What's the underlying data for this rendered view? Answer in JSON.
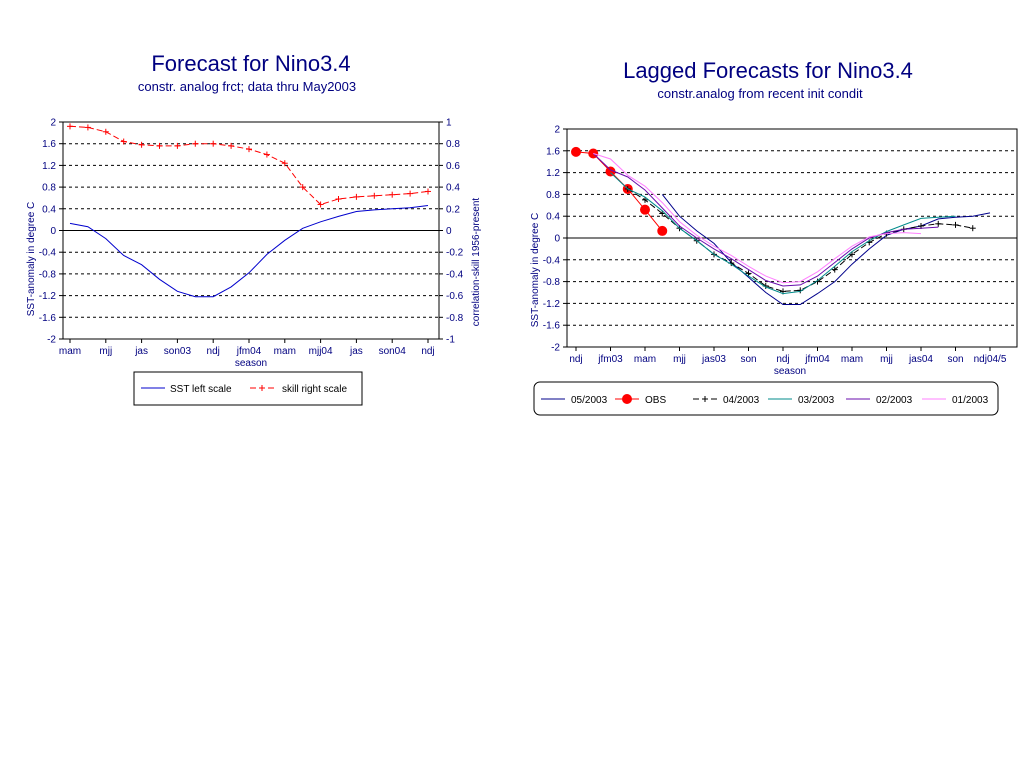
{
  "chart_data": [
    {
      "type": "line",
      "title": "Forecast for Nino3.4",
      "subtitle": "constr. analog frct; data thru May2003",
      "xlabel": "season",
      "ylabel": "SST-anomaly in degree C",
      "ylabel_right": "correlation-skill 1956-present",
      "ylim": [
        -2,
        2
      ],
      "ylim_right": [
        -1,
        1
      ],
      "yticks": [
        "2",
        "1.6",
        "1.2",
        "0.8",
        "0.4",
        "0",
        "-0.4",
        "-0.8",
        "-1.2",
        "-1.6",
        "-2"
      ],
      "yticks_right": [
        "1",
        "0.8",
        "0.6",
        "0.4",
        "0.2",
        "0",
        "-0.2",
        "-0.4",
        "-0.6",
        "-0.8",
        "-1"
      ],
      "categories": [
        "mam",
        "mjj",
        "jas",
        "son03",
        "ndj",
        "jfm04",
        "mam",
        "mjj04",
        "jas",
        "son04",
        "ndj"
      ],
      "grid": true,
      "legend_position": "bottom",
      "series": [
        {
          "name": "SST left scale",
          "axis": "left",
          "color": "#0000CD",
          "marker": "none",
          "x": [
            0,
            0.5,
            1,
            1.5,
            2,
            2.5,
            3,
            3.5,
            4,
            4.5,
            5,
            5.5,
            6,
            6.5,
            7,
            7.5,
            8,
            8.5,
            9,
            9.5,
            10
          ],
          "values": [
            0.13,
            0.07,
            -0.15,
            -0.46,
            -0.63,
            -0.9,
            -1.12,
            -1.22,
            -1.22,
            -1.04,
            -0.78,
            -0.44,
            -0.18,
            0.04,
            0.16,
            0.26,
            0.35,
            0.38,
            0.4,
            0.42,
            0.46
          ]
        },
        {
          "name": "skill right scale",
          "axis": "right",
          "color": "#FF0000",
          "marker": "plus",
          "x": [
            0,
            0.5,
            1,
            1.5,
            2,
            2.5,
            3,
            3.5,
            4,
            4.5,
            5,
            5.5,
            6,
            6.5,
            7,
            7.5,
            8,
            8.5,
            9,
            9.5,
            10
          ],
          "values": [
            0.96,
            0.95,
            0.91,
            0.82,
            0.79,
            0.78,
            0.78,
            0.8,
            0.8,
            0.78,
            0.75,
            0.7,
            0.62,
            0.4,
            0.24,
            0.29,
            0.31,
            0.32,
            0.33,
            0.34,
            0.36
          ]
        }
      ]
    },
    {
      "type": "line",
      "title": "Lagged Forecasts for Nino3.4",
      "subtitle": "constr.analog from recent init condit",
      "xlabel": "season",
      "ylabel": "SST-anomaly in degree C",
      "ylim": [
        -2,
        2
      ],
      "yticks": [
        "2",
        "1.6",
        "1.2",
        "0.8",
        "0.4",
        "0",
        "-0.4",
        "-0.8",
        "-1.2",
        "-1.6",
        "-2"
      ],
      "categories": [
        "ndj",
        "jfm03",
        "mam",
        "mjj",
        "jas03",
        "son",
        "ndj",
        "jfm04",
        "mam",
        "mjj",
        "jas04",
        "son",
        "ndj04/5"
      ],
      "grid": true,
      "legend_position": "bottom",
      "series": [
        {
          "name": "05/2003",
          "color": "#00008B",
          "marker": "none",
          "x": [
            2.5,
            3,
            3.5,
            4,
            4.5,
            5,
            5.5,
            6,
            6.5,
            7,
            7.5,
            8,
            8.5,
            9,
            9.5,
            10,
            10.5,
            11,
            11.5,
            12
          ],
          "values": [
            0.8,
            0.4,
            0.13,
            -0.1,
            -0.45,
            -0.72,
            -1.0,
            -1.22,
            -1.22,
            -1.02,
            -0.8,
            -0.48,
            -0.2,
            0.05,
            0.16,
            0.22,
            0.35,
            0.38,
            0.4,
            0.46
          ]
        },
        {
          "name": "OBS",
          "color": "#FF0000",
          "marker": "circle",
          "x": [
            0,
            0.5,
            1,
            1.5,
            2,
            2.5
          ],
          "values": [
            1.58,
            1.55,
            1.22,
            0.9,
            0.52,
            0.13
          ]
        },
        {
          "name": "04/2003",
          "color": "#000000",
          "marker": "plus",
          "x": [
            1.5,
            2,
            2.5,
            3,
            3.5,
            4,
            4.5,
            5,
            5.5,
            6,
            6.5,
            7,
            7.5,
            8,
            8.5,
            9,
            9.5,
            10,
            10.5,
            11,
            11.5
          ],
          "values": [
            0.9,
            0.7,
            0.45,
            0.18,
            -0.05,
            -0.3,
            -0.46,
            -0.65,
            -0.88,
            -0.98,
            -0.96,
            -0.8,
            -0.58,
            -0.3,
            -0.08,
            0.08,
            0.16,
            0.22,
            0.26,
            0.24,
            0.18
          ]
        },
        {
          "name": "03/2003",
          "color": "#008B8B",
          "marker": "none",
          "x": [
            1,
            1.5,
            2,
            2.5,
            3,
            3.5,
            4,
            4.5,
            5,
            5.5,
            6,
            6.5,
            7,
            7.5,
            8,
            8.5,
            9,
            9.5,
            10,
            10.5,
            11
          ],
          "values": [
            1.2,
            0.9,
            0.75,
            0.5,
            0.18,
            -0.05,
            -0.3,
            -0.48,
            -0.7,
            -0.9,
            -1.02,
            -0.98,
            -0.78,
            -0.52,
            -0.25,
            -0.05,
            0.12,
            0.24,
            0.36,
            0.38,
            0.4
          ]
        },
        {
          "name": "02/2003",
          "color": "#6A0DAD",
          "marker": "none",
          "x": [
            0.5,
            1,
            1.5,
            2,
            2.5,
            3,
            3.5,
            4,
            4.5,
            5,
            5.5,
            6,
            6.5,
            7,
            7.5,
            8,
            8.5,
            9,
            9.5,
            10,
            10.5
          ],
          "values": [
            1.55,
            1.25,
            1.12,
            0.88,
            0.55,
            0.22,
            0.0,
            -0.2,
            -0.38,
            -0.58,
            -0.78,
            -0.88,
            -0.86,
            -0.7,
            -0.45,
            -0.2,
            0.0,
            0.1,
            0.16,
            0.18,
            0.2
          ]
        },
        {
          "name": "01/2003",
          "color": "#FF80FF",
          "marker": "none",
          "x": [
            0.5,
            1,
            1.5,
            2,
            2.5,
            3,
            3.5,
            4,
            4.5,
            5,
            5.5,
            6,
            6.5,
            7,
            7.5,
            8,
            8.5,
            9,
            9.5,
            10
          ],
          "values": [
            1.55,
            1.45,
            1.15,
            0.95,
            0.65,
            0.3,
            0.05,
            -0.15,
            -0.32,
            -0.52,
            -0.7,
            -0.82,
            -0.8,
            -0.62,
            -0.38,
            -0.15,
            0.02,
            0.08,
            0.1,
            0.08
          ]
        }
      ]
    }
  ]
}
